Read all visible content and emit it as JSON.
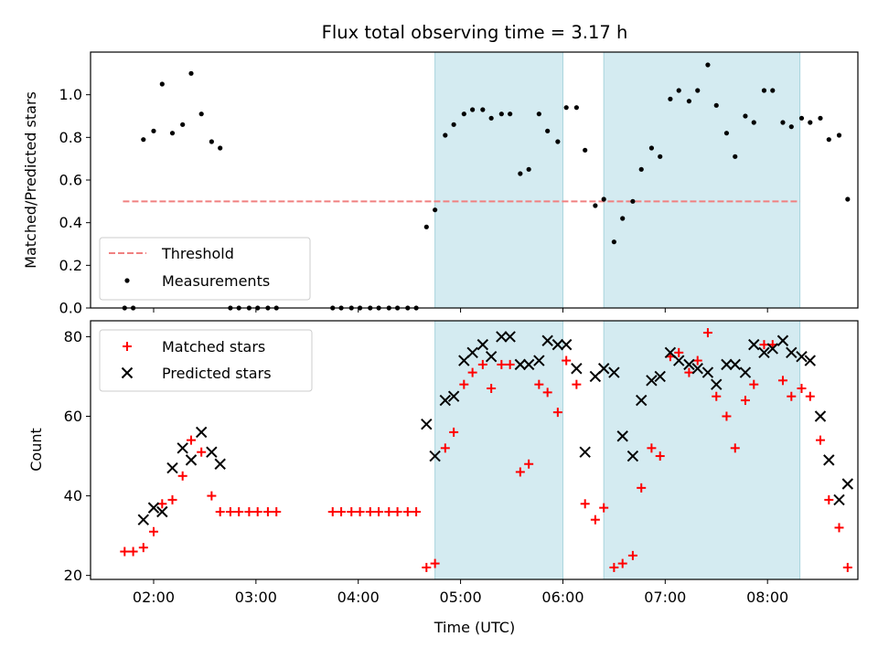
{
  "chart_data": {
    "type": "scatter",
    "title": "Flux total observing time = 3.17 h",
    "xlabel": "Time (UTC)",
    "x_ticks": [
      "02:00",
      "03:00",
      "04:00",
      "05:00",
      "06:00",
      "07:00",
      "08:00"
    ],
    "x_range": [
      "01:23",
      "08:53"
    ],
    "shaded_intervals": [
      [
        "04:45",
        "06:00"
      ],
      [
        "06:24",
        "08:19"
      ]
    ],
    "shade_color": "#d4ebf1",
    "top_panel": {
      "ylabel": "Matched/Predicted stars",
      "ylim": [
        0,
        1.2
      ],
      "y_ticks": [
        "0.0",
        "0.2",
        "0.4",
        "0.6",
        "0.8",
        "1.0"
      ],
      "threshold": {
        "name": "Threshold",
        "value": 0.5,
        "x_start": "01:42",
        "x_end": "08:19",
        "color": "#f08080"
      },
      "measurements": {
        "name": "Measurements",
        "color": "#000000",
        "points": [
          [
            "01:43",
            0.0
          ],
          [
            "01:48",
            0.0
          ],
          [
            "01:54",
            0.79
          ],
          [
            "02:00",
            0.83
          ],
          [
            "02:05",
            1.05
          ],
          [
            "02:11",
            0.82
          ],
          [
            "02:17",
            0.86
          ],
          [
            "02:22",
            1.1
          ],
          [
            "02:28",
            0.91
          ],
          [
            "02:34",
            0.78
          ],
          [
            "02:39",
            0.75
          ],
          [
            "02:45",
            0.0
          ],
          [
            "02:50",
            0.0
          ],
          [
            "02:56",
            0.0
          ],
          [
            "03:01",
            0.0
          ],
          [
            "03:07",
            0.0
          ],
          [
            "03:12",
            0.0
          ],
          [
            "03:45",
            0.0
          ],
          [
            "03:50",
            0.0
          ],
          [
            "03:56",
            0.0
          ],
          [
            "04:01",
            0.0
          ],
          [
            "04:07",
            0.0
          ],
          [
            "04:12",
            0.0
          ],
          [
            "04:18",
            0.0
          ],
          [
            "04:23",
            0.0
          ],
          [
            "04:29",
            0.0
          ],
          [
            "04:34",
            0.0
          ],
          [
            "04:40",
            0.38
          ],
          [
            "04:45",
            0.46
          ],
          [
            "04:51",
            0.81
          ],
          [
            "04:56",
            0.86
          ],
          [
            "05:02",
            0.91
          ],
          [
            "05:07",
            0.93
          ],
          [
            "05:13",
            0.93
          ],
          [
            "05:18",
            0.89
          ],
          [
            "05:24",
            0.91
          ],
          [
            "05:29",
            0.91
          ],
          [
            "05:35",
            0.63
          ],
          [
            "05:40",
            0.65
          ],
          [
            "05:46",
            0.91
          ],
          [
            "05:51",
            0.83
          ],
          [
            "05:57",
            0.78
          ],
          [
            "06:02",
            0.94
          ],
          [
            "06:08",
            0.94
          ],
          [
            "06:13",
            0.74
          ],
          [
            "06:19",
            0.48
          ],
          [
            "06:24",
            0.51
          ],
          [
            "06:30",
            0.31
          ],
          [
            "06:35",
            0.42
          ],
          [
            "06:41",
            0.5
          ],
          [
            "06:46",
            0.65
          ],
          [
            "06:52",
            0.75
          ],
          [
            "06:57",
            0.71
          ],
          [
            "07:03",
            0.98
          ],
          [
            "07:08",
            1.02
          ],
          [
            "07:14",
            0.97
          ],
          [
            "07:19",
            1.02
          ],
          [
            "07:25",
            1.14
          ],
          [
            "07:30",
            0.95
          ],
          [
            "07:36",
            0.82
          ],
          [
            "07:41",
            0.71
          ],
          [
            "07:47",
            0.9
          ],
          [
            "07:52",
            0.87
          ],
          [
            "07:58",
            1.02
          ],
          [
            "08:03",
            1.02
          ],
          [
            "08:09",
            0.87
          ],
          [
            "08:14",
            0.85
          ],
          [
            "08:20",
            0.89
          ],
          [
            "08:25",
            0.87
          ],
          [
            "08:31",
            0.89
          ],
          [
            "08:36",
            0.79
          ],
          [
            "08:42",
            0.81
          ],
          [
            "08:47",
            0.51
          ]
        ]
      },
      "legend_position": "lower-left"
    },
    "bottom_panel": {
      "ylabel": "Count",
      "ylim": [
        19,
        84
      ],
      "y_ticks": [
        "20",
        "40",
        "60",
        "80"
      ],
      "series": [
        {
          "name": "Matched stars",
          "marker": "plus",
          "color": "#ff0000",
          "points": [
            [
              "01:43",
              26
            ],
            [
              "01:48",
              26
            ],
            [
              "01:54",
              27
            ],
            [
              "02:00",
              31
            ],
            [
              "02:05",
              38
            ],
            [
              "02:11",
              39
            ],
            [
              "02:17",
              45
            ],
            [
              "02:22",
              54
            ],
            [
              "02:28",
              51
            ],
            [
              "02:34",
              40
            ],
            [
              "02:39",
              36
            ],
            [
              "02:45",
              36
            ],
            [
              "02:50",
              36
            ],
            [
              "02:56",
              36
            ],
            [
              "03:01",
              36
            ],
            [
              "03:07",
              36
            ],
            [
              "03:12",
              36
            ],
            [
              "03:45",
              36
            ],
            [
              "03:50",
              36
            ],
            [
              "03:56",
              36
            ],
            [
              "04:01",
              36
            ],
            [
              "04:07",
              36
            ],
            [
              "04:12",
              36
            ],
            [
              "04:18",
              36
            ],
            [
              "04:23",
              36
            ],
            [
              "04:29",
              36
            ],
            [
              "04:34",
              36
            ],
            [
              "04:40",
              22
            ],
            [
              "04:45",
              23
            ],
            [
              "04:51",
              52
            ],
            [
              "04:56",
              56
            ],
            [
              "05:02",
              68
            ],
            [
              "05:07",
              71
            ],
            [
              "05:13",
              73
            ],
            [
              "05:18",
              67
            ],
            [
              "05:24",
              73
            ],
            [
              "05:29",
              73
            ],
            [
              "05:35",
              46
            ],
            [
              "05:40",
              48
            ],
            [
              "05:46",
              68
            ],
            [
              "05:51",
              66
            ],
            [
              "05:57",
              61
            ],
            [
              "06:02",
              74
            ],
            [
              "06:08",
              68
            ],
            [
              "06:13",
              38
            ],
            [
              "06:19",
              34
            ],
            [
              "06:24",
              37
            ],
            [
              "06:30",
              22
            ],
            [
              "06:35",
              23
            ],
            [
              "06:41",
              25
            ],
            [
              "06:46",
              42
            ],
            [
              "06:52",
              52
            ],
            [
              "06:57",
              50
            ],
            [
              "07:03",
              75
            ],
            [
              "07:08",
              76
            ],
            [
              "07:14",
              71
            ],
            [
              "07:19",
              74
            ],
            [
              "07:25",
              81
            ],
            [
              "07:30",
              65
            ],
            [
              "07:36",
              60
            ],
            [
              "07:41",
              52
            ],
            [
              "07:47",
              64
            ],
            [
              "07:52",
              68
            ],
            [
              "07:58",
              78
            ],
            [
              "08:03",
              78
            ],
            [
              "08:09",
              69
            ],
            [
              "08:14",
              65
            ],
            [
              "08:20",
              67
            ],
            [
              "08:25",
              65
            ],
            [
              "08:31",
              54
            ],
            [
              "08:36",
              39
            ],
            [
              "08:42",
              32
            ],
            [
              "08:47",
              22
            ]
          ]
        },
        {
          "name": "Predicted stars",
          "marker": "x",
          "color": "#000000",
          "points": [
            [
              "01:54",
              34
            ],
            [
              "02:00",
              37
            ],
            [
              "02:05",
              36
            ],
            [
              "02:11",
              47
            ],
            [
              "02:17",
              52
            ],
            [
              "02:22",
              49
            ],
            [
              "02:28",
              56
            ],
            [
              "02:34",
              51
            ],
            [
              "02:39",
              48
            ],
            [
              "04:40",
              58
            ],
            [
              "04:45",
              50
            ],
            [
              "04:51",
              64
            ],
            [
              "04:56",
              65
            ],
            [
              "05:02",
              74
            ],
            [
              "05:07",
              76
            ],
            [
              "05:13",
              78
            ],
            [
              "05:18",
              75
            ],
            [
              "05:24",
              80
            ],
            [
              "05:29",
              80
            ],
            [
              "05:35",
              73
            ],
            [
              "05:40",
              73
            ],
            [
              "05:46",
              74
            ],
            [
              "05:51",
              79
            ],
            [
              "05:57",
              78
            ],
            [
              "06:02",
              78
            ],
            [
              "06:08",
              72
            ],
            [
              "06:13",
              51
            ],
            [
              "06:19",
              70
            ],
            [
              "06:24",
              72
            ],
            [
              "06:30",
              71
            ],
            [
              "06:35",
              55
            ],
            [
              "06:41",
              50
            ],
            [
              "06:46",
              64
            ],
            [
              "06:52",
              69
            ],
            [
              "06:57",
              70
            ],
            [
              "07:03",
              76
            ],
            [
              "07:08",
              74
            ],
            [
              "07:14",
              73
            ],
            [
              "07:19",
              72
            ],
            [
              "07:25",
              71
            ],
            [
              "07:30",
              68
            ],
            [
              "07:36",
              73
            ],
            [
              "07:41",
              73
            ],
            [
              "07:47",
              71
            ],
            [
              "07:52",
              78
            ],
            [
              "07:58",
              76
            ],
            [
              "08:03",
              77
            ],
            [
              "08:09",
              79
            ],
            [
              "08:14",
              76
            ],
            [
              "08:20",
              75
            ],
            [
              "08:25",
              74
            ],
            [
              "08:31",
              60
            ],
            [
              "08:36",
              49
            ],
            [
              "08:42",
              39
            ],
            [
              "08:47",
              43
            ]
          ]
        }
      ],
      "legend_position": "upper-left"
    }
  }
}
